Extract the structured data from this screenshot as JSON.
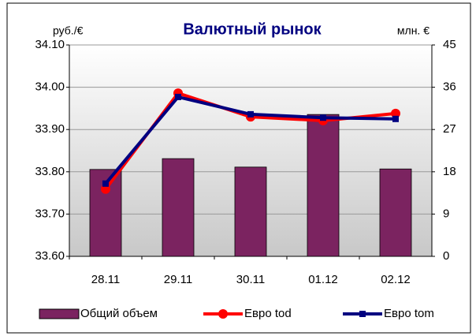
{
  "chart_data": {
    "type": "bar-line",
    "title": "Валютный рынок",
    "y_label": "руб./€",
    "y2_label": "млн. €",
    "categories": [
      "28.11",
      "29.11",
      "30.11",
      "01.12",
      "02.12"
    ],
    "series": [
      {
        "name": "Общий объем",
        "type": "bar",
        "axis": "y2",
        "color": "#7b2360",
        "values": [
          18.5,
          20.8,
          19.0,
          30.2,
          18.6
        ]
      },
      {
        "name": "Евро tod",
        "type": "line",
        "axis": "y",
        "color": "#ff0000",
        "marker": "circle",
        "values": [
          33.759,
          33.986,
          33.93,
          33.921,
          33.938
        ]
      },
      {
        "name": "Евро tom",
        "type": "line",
        "axis": "y",
        "color": "#000080",
        "marker": "square",
        "values": [
          33.772,
          33.977,
          33.936,
          33.928,
          33.925
        ]
      }
    ],
    "ylim": [
      33.6,
      34.1
    ],
    "yticks": [
      {
        "value": 33.6,
        "label": "33.60"
      },
      {
        "value": 33.7,
        "label": "33.70"
      },
      {
        "value": 33.8,
        "label": "33.80"
      },
      {
        "value": 33.9,
        "label": "33.90"
      },
      {
        "value": 34.0,
        "label": "34.00"
      },
      {
        "value": 34.1,
        "label": "34.10"
      }
    ],
    "y2lim": [
      0,
      45
    ],
    "y2ticks": [
      0,
      9,
      18,
      27,
      36,
      45
    ],
    "grid": true
  }
}
